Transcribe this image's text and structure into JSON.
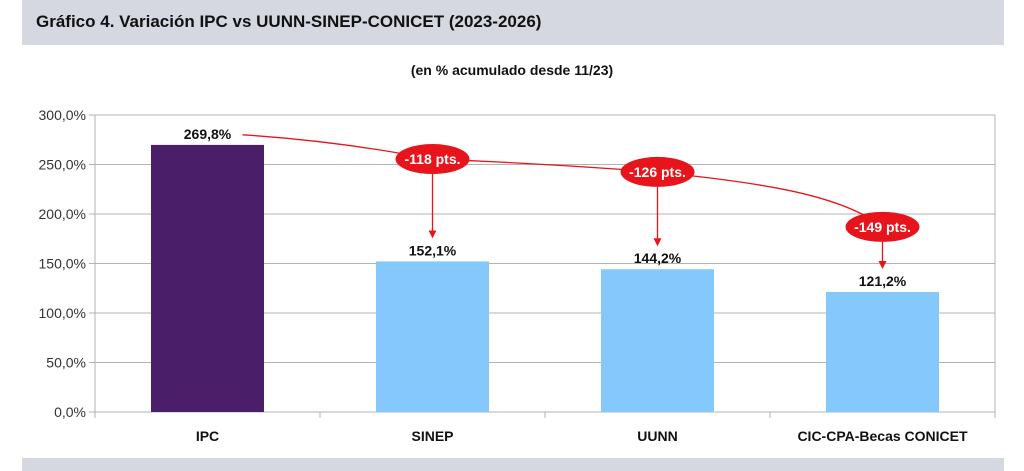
{
  "header": {
    "title": "Gráfico 4. Variación IPC vs UUNN-SINEP-CONICET (2023-2026)"
  },
  "chart_data": {
    "type": "bar",
    "title": "",
    "subtitle": "(en % acumulado desde 11/23)",
    "xlabel": "",
    "ylabel": "",
    "ylim": [
      0,
      300
    ],
    "yticks": [
      "0,0%",
      "50,0%",
      "100,0%",
      "150,0%",
      "200,0%",
      "250,0%",
      "300,0%"
    ],
    "grid": true,
    "categories": [
      "IPC",
      "SINEP",
      "UUNN",
      "CIC-CPA-Becas CONICET"
    ],
    "values": [
      269.8,
      152.1,
      144.2,
      121.2
    ],
    "data_labels": [
      "269,8%",
      "152,1%",
      "144,2%",
      "121,2%"
    ],
    "colors": [
      "#4a1e68",
      "#84c8fc",
      "#84c8fc",
      "#84c8fc"
    ],
    "annotations": [
      {
        "target": "SINEP",
        "text": "-118 pts."
      },
      {
        "target": "UUNN",
        "text": "-126 pts."
      },
      {
        "target": "CIC-CPA-Becas CONICET",
        "text": "-149 pts."
      }
    ],
    "annotation_color": "#e8141b",
    "grid_color": "#b3b3b3"
  }
}
